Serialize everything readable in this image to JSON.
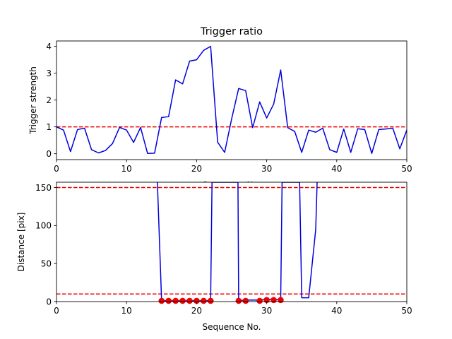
{
  "chart_data": [
    {
      "type": "line",
      "title": "Trigger ratio",
      "xlabel": "Sequence No.",
      "ylabel": "Trigger strength",
      "xlim": [
        0,
        50
      ],
      "ylim": [
        -0.22,
        4.2
      ],
      "xticks": [
        0,
        10,
        20,
        30,
        40,
        50
      ],
      "yticks": [
        0,
        1,
        2,
        3,
        4
      ],
      "line_color": "#0000dd",
      "threshold_color": "#ee0000",
      "thresholds": [
        1.0
      ],
      "series": [
        {
          "x": [
            0,
            1,
            2,
            3,
            4,
            5,
            6,
            7,
            8,
            9,
            10,
            11,
            12,
            13,
            14,
            15,
            16,
            17,
            18,
            19,
            20,
            21,
            22,
            23,
            24,
            25,
            26,
            27,
            28,
            29,
            30,
            31,
            32,
            33,
            34,
            35,
            36,
            37,
            38,
            39,
            40,
            41,
            42,
            43,
            44,
            45,
            46,
            47,
            48,
            49,
            50
          ],
          "values": [
            1.0,
            0.88,
            0.08,
            0.9,
            0.95,
            0.15,
            0.03,
            0.12,
            0.38,
            0.98,
            0.88,
            0.42,
            0.98,
            0.01,
            0.02,
            1.35,
            1.38,
            2.75,
            2.6,
            3.45,
            3.5,
            3.85,
            4.0,
            0.43,
            0.05,
            1.3,
            2.43,
            2.35,
            0.97,
            1.93,
            1.33,
            1.85,
            3.12,
            0.97,
            0.83,
            0.05,
            0.88,
            0.8,
            0.95,
            0.15,
            0.05,
            0.92,
            0.05,
            0.93,
            0.9,
            0.01,
            0.9,
            0.92,
            0.95,
            0.18,
            0.88
          ]
        }
      ]
    },
    {
      "type": "line",
      "title": "",
      "xlabel": "Sequence No.",
      "ylabel": "Distance [pix]",
      "xlim": [
        0,
        50
      ],
      "ylim": [
        0,
        157
      ],
      "xticks": [
        0,
        10,
        20,
        30,
        40,
        50
      ],
      "yticks": [
        0,
        50,
        100,
        150
      ],
      "line_color": "#0000dd",
      "threshold_color": "#ee0000",
      "marker_color": "#ee0000",
      "thresholds": [
        10,
        150
      ],
      "series": [
        {
          "x": [
            14.4,
            15,
            16,
            17,
            18,
            19,
            20,
            21,
            22,
            22.2,
            25.9,
            26,
            27,
            28,
            29,
            30,
            31,
            32,
            32.2,
            34.7,
            35,
            36,
            37,
            37.2
          ],
          "values": [
            157,
            1,
            1,
            1,
            1,
            1,
            1,
            1,
            1,
            157,
            157,
            1,
            2,
            2,
            2,
            3,
            3,
            2,
            157,
            157,
            5,
            5,
            95,
            157
          ]
        }
      ],
      "markers": {
        "x": [
          15,
          16,
          17,
          18,
          19,
          20,
          21,
          22,
          26,
          27,
          29,
          30,
          31,
          32
        ],
        "values": [
          1,
          1,
          1,
          1,
          1,
          1,
          1,
          1,
          1,
          1,
          1,
          2,
          2,
          2
        ]
      }
    }
  ]
}
